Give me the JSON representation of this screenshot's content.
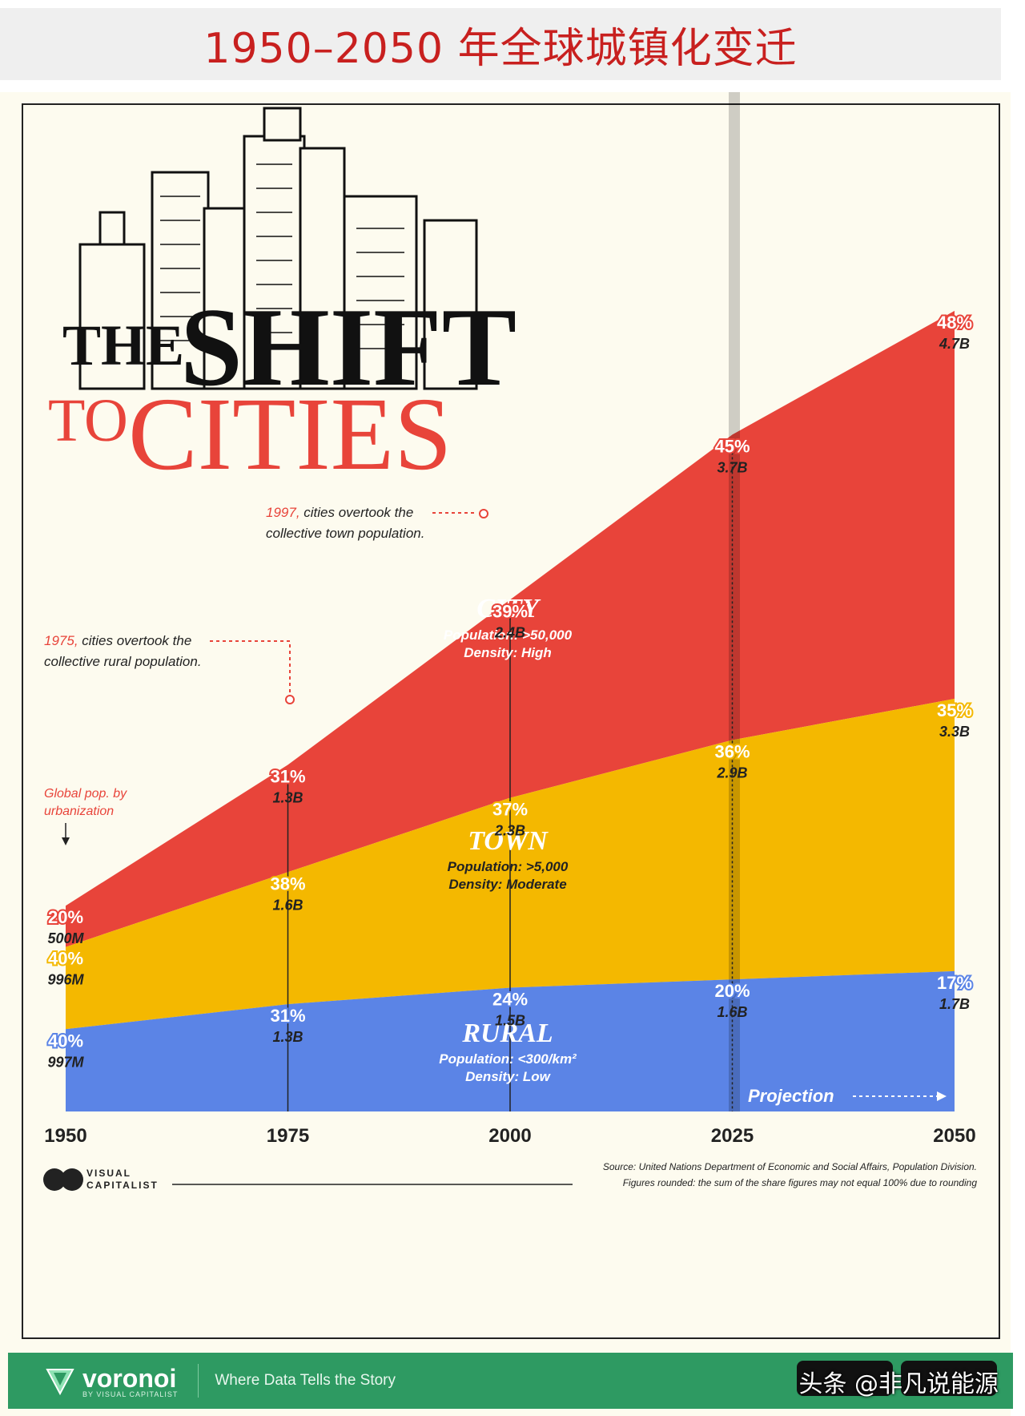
{
  "page_title": "1950–2050 年全球城镇化变迁",
  "poster": {
    "headline_line1": "THE SHIFT",
    "headline_the": "THE",
    "headline_shift": "SHIFT",
    "headline_to": "TO",
    "headline_cities": "CITIES",
    "brand": "VISUAL CAPITALIST",
    "brand_line1": "VISUAL",
    "brand_line2": "CAPITALIST",
    "source_line1": "Source: United Nations Department of Economic and Social Affairs, Population Division.",
    "source_line2": "Figures rounded: the sum of the share figures may not equal 100% due to rounding",
    "projection_label": "Projection",
    "legend_note_line1": "Global pop. by",
    "legend_note_line2": "urbanization"
  },
  "annotations": {
    "a1975_year": "1975,",
    "a1975_line1": " cities overtook the",
    "a1975_line2": "collective rural population.",
    "a1997_year": "1997,",
    "a1997_line1": " cities overtook the",
    "a1997_line2": "collective town population."
  },
  "categories_info": {
    "city": {
      "name": "CITY",
      "pop": "Population: >50,000",
      "density": "Density: High"
    },
    "town": {
      "name": "TOWN",
      "pop": "Population: >5,000",
      "density": "Density: Moderate"
    },
    "rural": {
      "name": "RURAL",
      "pop": "Population: <300/km²",
      "density": "Density: Low"
    }
  },
  "footer": {
    "brand": "voronoi",
    "brand_sub": "BY VISUAL CAPITALIST",
    "tagline": "Where Data Tells the Story",
    "watermark": "头条 @非凡说能源"
  },
  "colors": {
    "city": "#e8443a",
    "town": "#f4b800",
    "rural": "#5b84e6",
    "title_red": "#c8201f",
    "footer_green": "#2e9a62"
  },
  "chart_data": {
    "type": "area",
    "stacked": true,
    "title": "THE SHIFT TO CITIES",
    "x": [
      1950,
      1975,
      2000,
      2025,
      2050
    ],
    "x_ticks": [
      "1950",
      "1975",
      "2000",
      "2025",
      "2050"
    ],
    "projection_from": 2025,
    "units": "billions",
    "series": [
      {
        "name": "RURAL",
        "values": [
          0.997,
          1.3,
          1.5,
          1.6,
          1.7
        ],
        "value_labels": [
          "997M",
          "1.3B",
          "1.5B",
          "1.6B",
          "1.7B"
        ],
        "share_labels": [
          "40%",
          "31%",
          "24%",
          "20%",
          "17%"
        ]
      },
      {
        "name": "TOWN",
        "values": [
          0.996,
          1.6,
          2.3,
          2.9,
          3.3
        ],
        "value_labels": [
          "996M",
          "1.6B",
          "2.3B",
          "2.9B",
          "3.3B"
        ],
        "share_labels": [
          "40%",
          "38%",
          "37%",
          "36%",
          "35%"
        ]
      },
      {
        "name": "CITY",
        "values": [
          0.5,
          1.3,
          2.4,
          3.7,
          4.7
        ],
        "value_labels": [
          "500M",
          "1.3B",
          "2.4B",
          "3.7B",
          "4.7B"
        ],
        "share_labels": [
          "20%",
          "31%",
          "39%",
          "45%",
          "48%"
        ]
      }
    ]
  }
}
